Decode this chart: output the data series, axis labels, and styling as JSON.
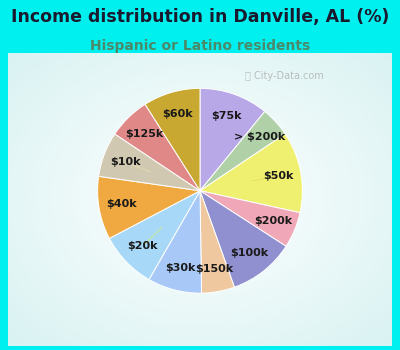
{
  "title": "Income distribution in Danville, AL (%)",
  "subtitle": "Hispanic or Latino residents",
  "bg_cyan": "#00f0f0",
  "bg_chart": "#ffffff",
  "labels": [
    "$75k",
    "> $200k",
    "$50k",
    "$200k",
    "$100k",
    "$150k",
    "$30k",
    "$20k",
    "$40k",
    "$10k",
    "$125k",
    "$60k"
  ],
  "values": [
    11.5,
    5.0,
    13.5,
    6.0,
    11.0,
    5.5,
    9.0,
    9.5,
    10.5,
    7.5,
    7.0,
    9.5
  ],
  "colors": [
    "#b8a8e8",
    "#b0d0a8",
    "#f0f070",
    "#f0a8b8",
    "#9090d0",
    "#f0c8a0",
    "#a8c8f8",
    "#a8d8f8",
    "#f0a840",
    "#d0c8b0",
    "#e08888",
    "#c8a830"
  ],
  "line_colors": [
    "#b8a8e8",
    "#b0d0a8",
    "#e8e060",
    "#f0a8b8",
    "#9090d0",
    "#f0c8a0",
    "#a8c8f8",
    "#c8e8a0",
    "#f0a840",
    "#e0d8b0",
    "#e08888",
    "#c8a830"
  ],
  "label_fontsize": 8.0,
  "title_fontsize": 12.5,
  "subtitle_fontsize": 10.0,
  "title_color": "#1a1a2e",
  "subtitle_color": "#4a8a6a",
  "figsize": [
    4.0,
    3.5
  ],
  "dpi": 100
}
